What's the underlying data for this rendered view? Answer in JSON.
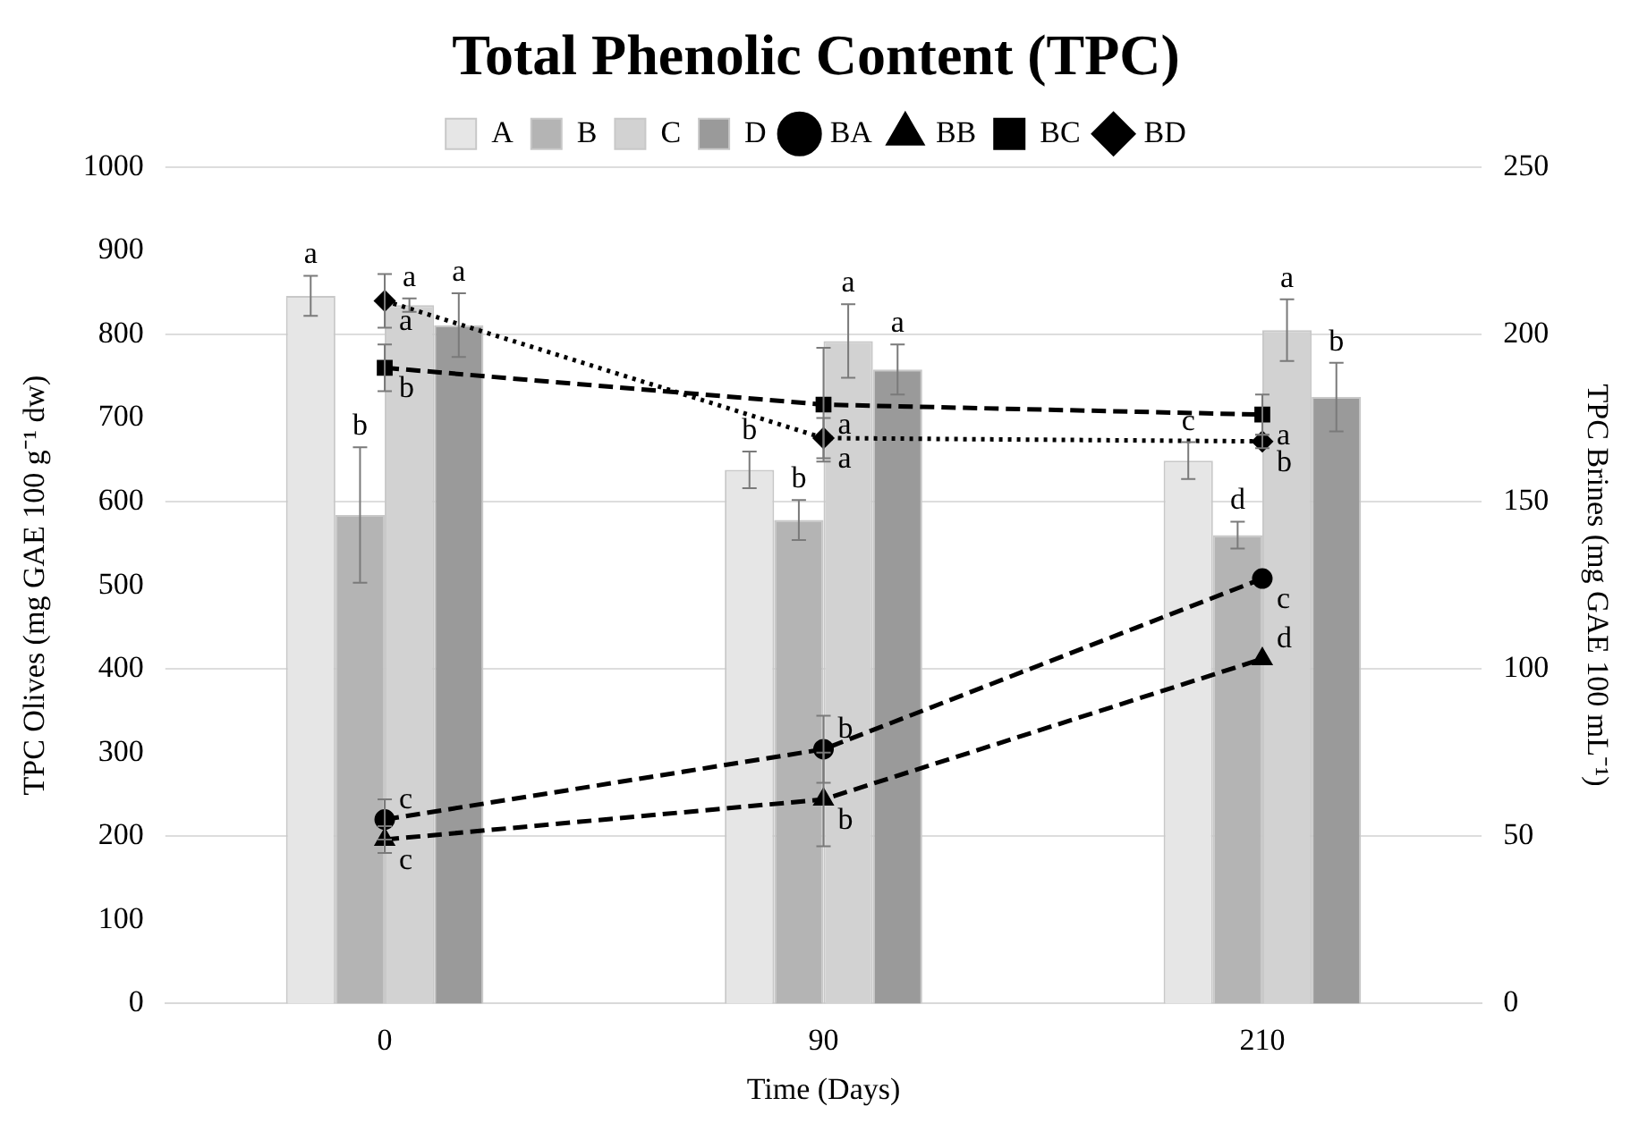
{
  "chart_data": {
    "type": "bar",
    "title": "Total Phenolic Content (TPC)",
    "xlabel": "Time (Days)",
    "ylabel": "TPC Olives (mg GAE 100 g⁻¹ dw)",
    "y2label": "TPC Brines (mg GAE 100 mL⁻¹)",
    "categories": [
      "0",
      "90",
      "210"
    ],
    "series": [
      {
        "name": "A",
        "color": "#e6e6e6",
        "values": [
          846,
          638,
          649
        ],
        "errors": [
          24,
          22,
          22
        ]
      },
      {
        "name": "B",
        "color": "#b4b4b4",
        "values": [
          584,
          578,
          560
        ],
        "errors": [
          81,
          24,
          16
        ]
      },
      {
        "name": "C",
        "color": "#d2d2d2",
        "values": [
          835,
          792,
          805
        ],
        "errors": [
          8,
          44,
          37
        ]
      },
      {
        "name": "D",
        "color": "#9a9a9a",
        "values": [
          811,
          758,
          725
        ],
        "errors": [
          38,
          30,
          41
        ]
      },
      {
        "name": "BA",
        "type": "line",
        "axis": "y2",
        "color": "#000000",
        "marker": "circle",
        "line_style": "dashed",
        "values": [
          55,
          76,
          127
        ],
        "errors": [
          6,
          10,
          null
        ]
      },
      {
        "name": "BB",
        "type": "line",
        "axis": "y2",
        "color": "#000000",
        "marker": "triangle",
        "line_style": "dashed",
        "values": [
          49,
          61,
          103
        ],
        "errors": [
          4,
          14,
          null
        ]
      },
      {
        "name": "BC",
        "type": "line",
        "axis": "y2",
        "color": "#000000",
        "marker": "square",
        "line_style": "dashed",
        "values": [
          190,
          179,
          176
        ],
        "errors": [
          7,
          17,
          6
        ]
      },
      {
        "name": "BD",
        "type": "line",
        "axis": "y2",
        "color": "#000000",
        "marker": "diamond",
        "line_style": "dotted",
        "values": [
          210,
          169,
          168
        ],
        "errors": [
          8,
          6,
          2
        ]
      }
    ],
    "ylim": [
      0,
      1000
    ],
    "yticks": [
      0,
      100,
      200,
      300,
      400,
      500,
      600,
      700,
      800,
      900,
      1000
    ],
    "y2lim": [
      0,
      250
    ],
    "y2ticks": [
      0,
      50,
      100,
      150,
      200,
      250
    ],
    "grid": "y2",
    "legend": "top",
    "annotations": [
      {
        "text": "a",
        "x": "0",
        "y": 846
      },
      {
        "text": "b",
        "x": "0",
        "y": 584
      },
      {
        "text": "a",
        "x": "0",
        "y": 835
      },
      {
        "text": "a",
        "x": "0",
        "y": 811
      },
      {
        "text": "c",
        "x": "0",
        "y": 220
      },
      {
        "text": "c",
        "x": "0",
        "y": 196
      },
      {
        "text": "b",
        "x": "0",
        "y": 760
      },
      {
        "text": "a",
        "x": "0",
        "y": 840
      },
      {
        "text": "b",
        "x": "90",
        "y": 638
      },
      {
        "text": "b",
        "x": "90",
        "y": 578
      },
      {
        "text": "a",
        "x": "90",
        "y": 792
      },
      {
        "text": "a",
        "x": "90",
        "y": 758
      },
      {
        "text": "b",
        "x": "90",
        "y": 304
      },
      {
        "text": "b",
        "x": "90",
        "y": 244
      },
      {
        "text": "a",
        "x": "90",
        "y": 716
      },
      {
        "text": "a",
        "x": "90",
        "y": 676
      },
      {
        "text": "c",
        "x": "210",
        "y": 649
      },
      {
        "text": "d",
        "x": "210",
        "y": 560
      },
      {
        "text": "a",
        "x": "210",
        "y": 805
      },
      {
        "text": "b",
        "x": "210",
        "y": 725
      },
      {
        "text": "c",
        "x": "210",
        "y": 508
      },
      {
        "text": "d",
        "x": "210",
        "y": 412
      },
      {
        "text": "a",
        "x": "210",
        "y": 704
      },
      {
        "text": "b",
        "x": "210",
        "y": 672
      }
    ]
  }
}
